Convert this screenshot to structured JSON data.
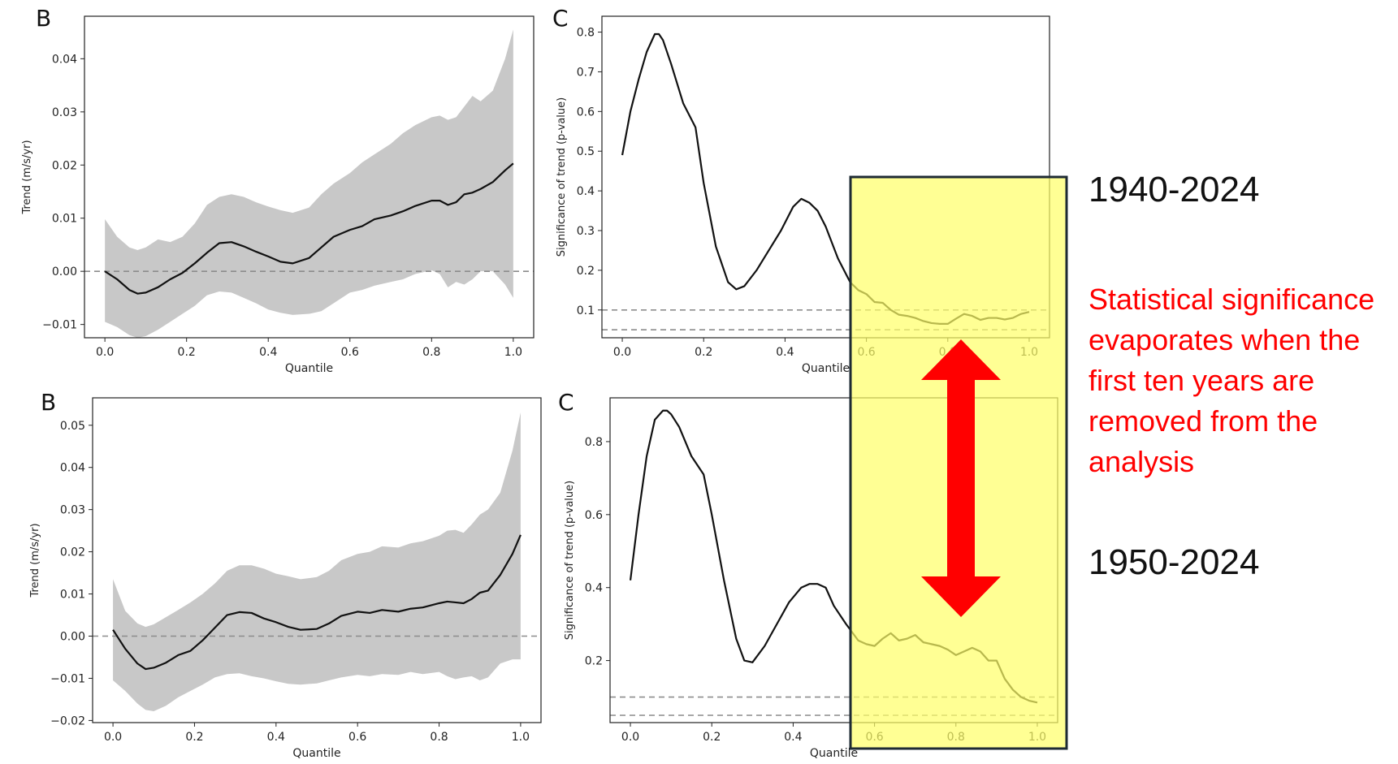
{
  "colors": {
    "band": "#c8c8c8",
    "line": "#111111",
    "dashed": "#8c8c8c",
    "highlight_fill": "#ffff66",
    "highlight_border": "#1e2a33",
    "arrow": "#ff0000",
    "note_text": "#ff0000"
  },
  "annotations": {
    "period_top": "1940-2024",
    "period_bottom": "1950-2024",
    "note_lines": [
      "Statistical significance",
      "evaporates when the",
      "first ten years are",
      "removed from the",
      "analysis"
    ]
  },
  "chart_data": [
    {
      "panel": "B",
      "type": "line",
      "period": "1940-2024",
      "xlabel": "Quantile",
      "ylabel": "Trend (m/s/yr)",
      "xlim": [
        -0.05,
        1.05
      ],
      "ylim": [
        -0.0125,
        0.048
      ],
      "xticks": [
        0.0,
        0.2,
        0.4,
        0.6,
        0.8,
        1.0
      ],
      "xtick_labels": [
        "0.0",
        "0.2",
        "0.4",
        "0.6",
        "0.8",
        "1.0"
      ],
      "yticks": [
        -0.01,
        0.0,
        0.01,
        0.02,
        0.03,
        0.04
      ],
      "ytick_labels": [
        "−0.01",
        "0.00",
        "0.01",
        "0.02",
        "0.03",
        "0.04"
      ],
      "hline": [
        0.0
      ],
      "series": [
        {
          "x": [
            0.0,
            0.03,
            0.06,
            0.08,
            0.1,
            0.13,
            0.16,
            0.19,
            0.22,
            0.25,
            0.28,
            0.31,
            0.34,
            0.37,
            0.4,
            0.43,
            0.46,
            0.5,
            0.53,
            0.56,
            0.6,
            0.63,
            0.66,
            0.7,
            0.73,
            0.76,
            0.8,
            0.82,
            0.84,
            0.86,
            0.88,
            0.9,
            0.92,
            0.95,
            0.98,
            1.0
          ],
          "y": [
            0.0,
            -0.0015,
            -0.0035,
            -0.0042,
            -0.004,
            -0.003,
            -0.0015,
            -0.0003,
            0.0015,
            0.0035,
            0.0053,
            0.0055,
            0.0047,
            0.0037,
            0.0028,
            0.0018,
            0.0015,
            0.0025,
            0.0045,
            0.0065,
            0.0078,
            0.0085,
            0.0098,
            0.0105,
            0.0113,
            0.0123,
            0.0133,
            0.0133,
            0.0125,
            0.013,
            0.0145,
            0.0148,
            0.0155,
            0.0168,
            0.019,
            0.0203
          ],
          "lower": [
            -0.0095,
            -0.0105,
            -0.012,
            -0.0125,
            -0.0122,
            -0.011,
            -0.0095,
            -0.008,
            -0.0065,
            -0.0045,
            -0.0038,
            -0.004,
            -0.005,
            -0.006,
            -0.0072,
            -0.0078,
            -0.0082,
            -0.008,
            -0.0075,
            -0.006,
            -0.004,
            -0.0035,
            -0.0027,
            -0.002,
            -0.0015,
            -0.0005,
            0.0002,
            -0.0005,
            -0.003,
            -0.002,
            -0.0025,
            -0.0015,
            0.0,
            0.0,
            -0.0025,
            -0.005
          ],
          "upper": [
            0.0098,
            0.0065,
            0.0045,
            0.004,
            0.0045,
            0.006,
            0.0055,
            0.0065,
            0.009,
            0.0125,
            0.014,
            0.0145,
            0.014,
            0.013,
            0.0122,
            0.0115,
            0.011,
            0.012,
            0.0145,
            0.0165,
            0.0185,
            0.0205,
            0.022,
            0.024,
            0.026,
            0.0275,
            0.029,
            0.0293,
            0.0285,
            0.029,
            0.031,
            0.033,
            0.032,
            0.034,
            0.04,
            0.0455
          ]
        }
      ]
    },
    {
      "panel": "C",
      "type": "line",
      "period": "1940-2024",
      "xlabel": "Quantile",
      "ylabel": "Significance of trend (p-value)",
      "xlim": [
        -0.05,
        1.05
      ],
      "ylim": [
        0.03,
        0.84
      ],
      "xticks": [
        0.0,
        0.2,
        0.4,
        0.6,
        0.8,
        1.0
      ],
      "xtick_labels": [
        "0.0",
        "0.2",
        "0.4",
        "0.6",
        "0.8",
        "1.0"
      ],
      "yticks": [
        0.1,
        0.2,
        0.3,
        0.4,
        0.5,
        0.6,
        0.7,
        0.8
      ],
      "ytick_labels": [
        "0.1",
        "0.2",
        "0.3",
        "0.4",
        "0.5",
        "0.6",
        "0.7",
        "0.8"
      ],
      "hline": [
        0.1,
        0.05
      ],
      "series": [
        {
          "x": [
            0.0,
            0.02,
            0.04,
            0.06,
            0.08,
            0.09,
            0.1,
            0.12,
            0.15,
            0.18,
            0.2,
            0.23,
            0.26,
            0.28,
            0.3,
            0.33,
            0.36,
            0.39,
            0.42,
            0.44,
            0.46,
            0.48,
            0.5,
            0.53,
            0.56,
            0.58,
            0.6,
            0.62,
            0.64,
            0.66,
            0.68,
            0.7,
            0.72,
            0.74,
            0.76,
            0.78,
            0.8,
            0.82,
            0.84,
            0.86,
            0.88,
            0.9,
            0.92,
            0.94,
            0.96,
            0.98,
            1.0
          ],
          "y": [
            0.49,
            0.6,
            0.68,
            0.75,
            0.795,
            0.795,
            0.78,
            0.72,
            0.62,
            0.56,
            0.42,
            0.26,
            0.17,
            0.152,
            0.16,
            0.2,
            0.25,
            0.3,
            0.36,
            0.38,
            0.37,
            0.35,
            0.31,
            0.23,
            0.17,
            0.15,
            0.14,
            0.12,
            0.118,
            0.1,
            0.088,
            0.085,
            0.08,
            0.072,
            0.067,
            0.065,
            0.065,
            0.078,
            0.09,
            0.085,
            0.075,
            0.08,
            0.08,
            0.076,
            0.08,
            0.09,
            0.095
          ]
        }
      ]
    },
    {
      "panel": "B",
      "type": "line",
      "period": "1950-2024",
      "xlabel": "Quantile",
      "ylabel": "Trend (m/s/yr)",
      "xlim": [
        -0.05,
        1.05
      ],
      "ylim": [
        -0.0205,
        0.0565
      ],
      "xticks": [
        0.0,
        0.2,
        0.4,
        0.6,
        0.8,
        1.0
      ],
      "xtick_labels": [
        "0.0",
        "0.2",
        "0.4",
        "0.6",
        "0.8",
        "1.0"
      ],
      "yticks": [
        -0.02,
        -0.01,
        0.0,
        0.01,
        0.02,
        0.03,
        0.04,
        0.05
      ],
      "ytick_labels": [
        "−0.02",
        "−0.01",
        "0.00",
        "0.01",
        "0.02",
        "0.03",
        "0.04",
        "0.05"
      ],
      "hline": [
        0.0
      ],
      "series": [
        {
          "x": [
            0.0,
            0.03,
            0.06,
            0.08,
            0.1,
            0.13,
            0.16,
            0.19,
            0.22,
            0.25,
            0.28,
            0.31,
            0.34,
            0.37,
            0.4,
            0.43,
            0.46,
            0.5,
            0.53,
            0.56,
            0.6,
            0.63,
            0.66,
            0.7,
            0.73,
            0.76,
            0.8,
            0.82,
            0.84,
            0.86,
            0.88,
            0.9,
            0.92,
            0.95,
            0.98,
            1.0
          ],
          "y": [
            0.0015,
            -0.003,
            -0.0065,
            -0.0078,
            -0.0075,
            -0.0063,
            -0.0045,
            -0.0035,
            -0.001,
            0.002,
            0.005,
            0.0057,
            0.0055,
            0.0042,
            0.0033,
            0.0022,
            0.0015,
            0.0017,
            0.003,
            0.0048,
            0.0058,
            0.0055,
            0.0062,
            0.0058,
            0.0065,
            0.0068,
            0.0078,
            0.0082,
            0.008,
            0.0078,
            0.0088,
            0.0103,
            0.0108,
            0.0145,
            0.0195,
            0.024
          ],
          "lower": [
            -0.0105,
            -0.013,
            -0.016,
            -0.0175,
            -0.0178,
            -0.0165,
            -0.0145,
            -0.013,
            -0.0115,
            -0.0098,
            -0.009,
            -0.0088,
            -0.0095,
            -0.01,
            -0.0107,
            -0.0113,
            -0.0115,
            -0.0112,
            -0.0105,
            -0.0098,
            -0.0092,
            -0.0095,
            -0.009,
            -0.0092,
            -0.0085,
            -0.009,
            -0.0085,
            -0.0095,
            -0.0102,
            -0.0098,
            -0.0095,
            -0.0105,
            -0.0098,
            -0.0065,
            -0.0055,
            -0.0055
          ],
          "upper": [
            0.0135,
            0.006,
            0.003,
            0.0022,
            0.0028,
            0.0045,
            0.0062,
            0.008,
            0.01,
            0.0125,
            0.0155,
            0.0168,
            0.0168,
            0.016,
            0.0148,
            0.0142,
            0.0135,
            0.014,
            0.0155,
            0.018,
            0.0195,
            0.02,
            0.0213,
            0.021,
            0.022,
            0.0225,
            0.0238,
            0.025,
            0.0252,
            0.0245,
            0.0265,
            0.0288,
            0.03,
            0.034,
            0.044,
            0.053
          ]
        }
      ]
    },
    {
      "panel": "C",
      "type": "line",
      "period": "1950-2024",
      "xlabel": "Quantile",
      "ylabel": "Significance of trend (p-value)",
      "xlim": [
        -0.05,
        1.05
      ],
      "ylim": [
        0.03,
        0.92
      ],
      "xticks": [
        0.0,
        0.2,
        0.4,
        0.6,
        0.8,
        1.0
      ],
      "xtick_labels": [
        "0.0",
        "0.2",
        "0.4",
        "0.6",
        "0.8",
        "1.0"
      ],
      "yticks": [
        0.2,
        0.4,
        0.6,
        0.8
      ],
      "ytick_labels": [
        "0.2",
        "0.4",
        "0.6",
        "0.8"
      ],
      "hline": [
        0.1,
        0.05
      ],
      "series": [
        {
          "x": [
            0.0,
            0.02,
            0.04,
            0.06,
            0.08,
            0.09,
            0.1,
            0.12,
            0.15,
            0.18,
            0.2,
            0.23,
            0.26,
            0.28,
            0.3,
            0.33,
            0.36,
            0.39,
            0.42,
            0.44,
            0.46,
            0.48,
            0.5,
            0.53,
            0.56,
            0.58,
            0.6,
            0.62,
            0.64,
            0.66,
            0.68,
            0.7,
            0.72,
            0.74,
            0.76,
            0.78,
            0.8,
            0.82,
            0.84,
            0.86,
            0.88,
            0.9,
            0.92,
            0.94,
            0.96,
            0.98,
            1.0
          ],
          "y": [
            0.42,
            0.6,
            0.76,
            0.86,
            0.885,
            0.885,
            0.875,
            0.84,
            0.76,
            0.71,
            0.6,
            0.42,
            0.26,
            0.2,
            0.195,
            0.24,
            0.3,
            0.36,
            0.4,
            0.41,
            0.41,
            0.4,
            0.35,
            0.3,
            0.255,
            0.245,
            0.24,
            0.26,
            0.275,
            0.255,
            0.26,
            0.27,
            0.25,
            0.245,
            0.24,
            0.23,
            0.215,
            0.225,
            0.235,
            0.225,
            0.2,
            0.2,
            0.15,
            0.12,
            0.1,
            0.09,
            0.085
          ]
        }
      ]
    }
  ]
}
